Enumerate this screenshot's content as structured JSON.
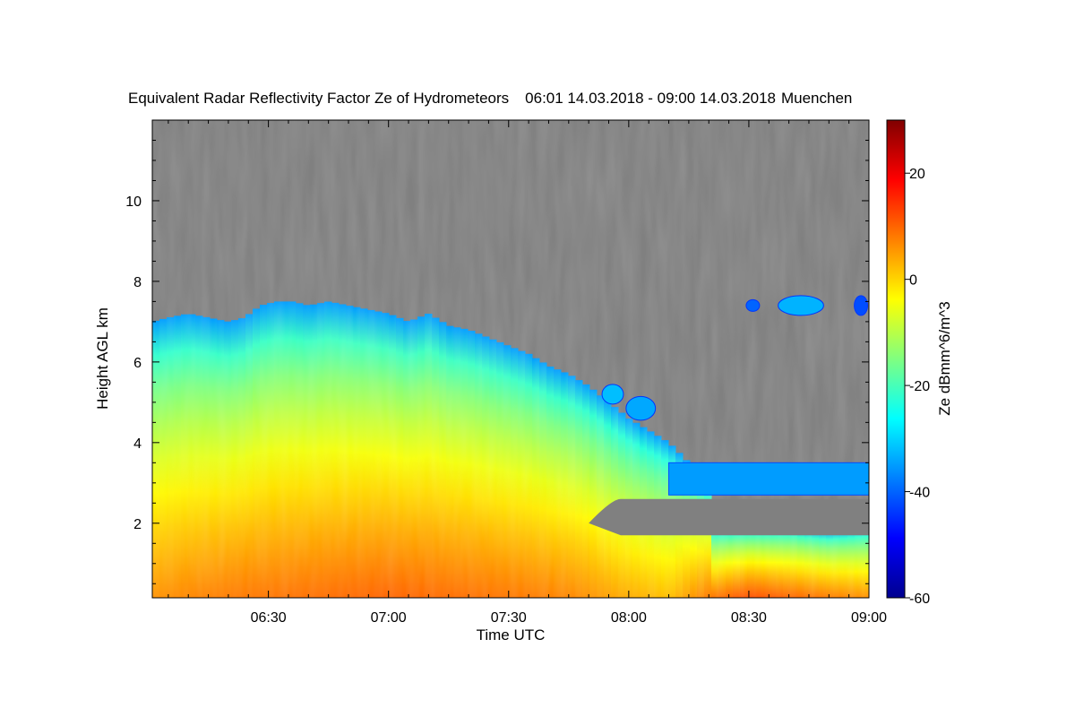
{
  "chart_data": {
    "type": "heatmap",
    "title": "Equivalent Radar Reflectivity Factor Ze of Hydrometeors",
    "period": "06:01 14.03.2018 - 09:00 14.03.2018",
    "location": "Muenchen",
    "xlabel": "Time UTC",
    "ylabel": "Height AGL km",
    "colorbar_label": "Ze dBmm^6/m^3",
    "x_tick_labels": [
      "06:30",
      "07:00",
      "07:30",
      "08:00",
      "08:30",
      "09:00"
    ],
    "x_tick_minutes": [
      390,
      420,
      450,
      480,
      510,
      540
    ],
    "xlim_minutes": [
      361,
      540
    ],
    "y_ticks": [
      2,
      4,
      6,
      8,
      10
    ],
    "ylim": [
      0.15,
      12
    ],
    "colorbar_ticks": [
      20,
      0,
      -20,
      -40,
      -60
    ],
    "colorbar_range": [
      -60,
      30
    ],
    "no_data_color": "#808080",
    "colormap": [
      "#00008f",
      "#0000ff",
      "#0080ff",
      "#00ffff",
      "#80ff80",
      "#ffff00",
      "#ff8000",
      "#ff0000",
      "#800000"
    ],
    "cloud_top_profile": {
      "time_minutes": [
        361,
        365,
        370,
        375,
        380,
        384,
        388,
        392,
        396,
        400,
        405,
        410,
        415,
        420,
        425,
        430,
        435,
        440,
        445,
        450,
        455,
        460,
        465,
        470,
        475,
        480,
        485,
        490,
        495,
        500
      ],
      "top_km": [
        7.0,
        7.1,
        7.2,
        7.1,
        7.0,
        7.1,
        7.4,
        7.5,
        7.5,
        7.4,
        7.5,
        7.4,
        7.3,
        7.2,
        7.0,
        7.2,
        6.9,
        6.8,
        6.6,
        6.4,
        6.2,
        5.9,
        5.7,
        5.4,
        5.0,
        4.6,
        4.3,
        4.0,
        3.5,
        3.0
      ]
    },
    "patches": [
      {
        "t": 476,
        "z": 5.0,
        "zmax": 5.4,
        "t_width": 4,
        "value_dbz": -32
      },
      {
        "t": 483,
        "z": 4.6,
        "zmax": 5.1,
        "t_width": 6,
        "value_dbz": -34
      },
      {
        "t": 523,
        "z": 7.2,
        "zmax": 7.6,
        "t_width": 10,
        "value_dbz": -33
      },
      {
        "t": 511,
        "z": 7.3,
        "zmax": 7.5,
        "t_width": 2,
        "value_dbz": -40
      },
      {
        "t": 538,
        "z": 7.2,
        "zmax": 7.6,
        "t_width": 2,
        "value_dbz": -42
      }
    ],
    "upper_layer": {
      "time_minutes": [
        490,
        540
      ],
      "base_km": 2.7,
      "top_km": 3.5,
      "value_dbz": -35
    },
    "lower_layer_top_km": {
      "time_minutes": [
        480,
        490,
        500,
        510,
        520,
        530,
        540
      ],
      "top_km": [
        1.7,
        1.8,
        1.9,
        1.9,
        1.9,
        1.8,
        1.9
      ]
    },
    "gap": {
      "time_minutes": [
        470,
        540
      ],
      "base_km": 1.7,
      "top_km": 2.6
    },
    "surface_values_dbz": {
      "time_minutes": [
        361,
        380,
        400,
        420,
        440,
        455,
        465,
        470,
        478,
        490,
        500,
        510,
        520,
        530,
        540
      ],
      "value_dbz": [
        6,
        8,
        9,
        10,
        9,
        8,
        7,
        6,
        4,
        2,
        8,
        12,
        10,
        8,
        6
      ]
    }
  }
}
